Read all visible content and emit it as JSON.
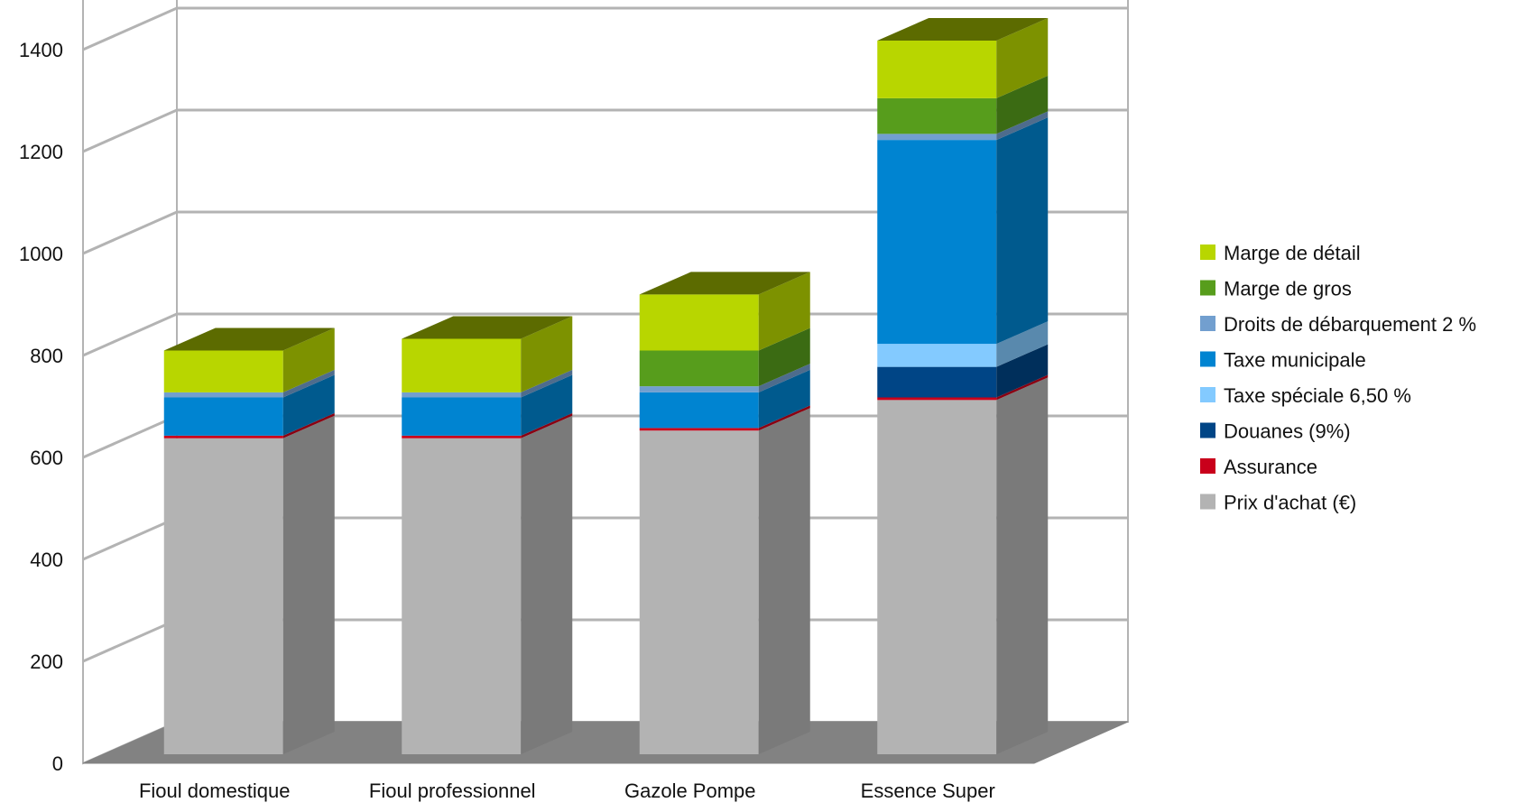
{
  "chart_data": {
    "type": "bar",
    "stacked": true,
    "three_d": true,
    "title": "",
    "xlabel": "",
    "ylabel": "",
    "ylim": [
      0,
      1400
    ],
    "yticks": [
      0,
      200,
      400,
      600,
      800,
      1000,
      1200,
      1400
    ],
    "grid": true,
    "legend_position": "right",
    "categories": [
      "Fioul domestique",
      "Fioul professionnel",
      "Gazole Pompe",
      "Essence Super"
    ],
    "series": [
      {
        "name": "Prix d'achat (€)",
        "color": "#b3b3b3",
        "values": [
          620,
          620,
          635,
          695
        ]
      },
      {
        "name": "Assurance",
        "color": "#c9001b",
        "values": [
          5,
          5,
          5,
          5
        ]
      },
      {
        "name": "Douanes (9%)",
        "color": "#004586",
        "values": [
          0,
          0,
          0,
          60
        ]
      },
      {
        "name": "Taxe spéciale 6,50 %",
        "color": "#83caff",
        "values": [
          0,
          0,
          0,
          45
        ]
      },
      {
        "name": "Taxe municipale",
        "color": "#0084d1",
        "values": [
          75,
          75,
          70,
          400
        ]
      },
      {
        "name": "Droits de débarquement 2 %",
        "color": "#729fcf",
        "values": [
          10,
          10,
          12,
          12
        ]
      },
      {
        "name": "Marge de gros",
        "color": "#579d1c",
        "values": [
          0,
          0,
          70,
          70
        ]
      },
      {
        "name": "Marge de détail",
        "color": "#b8d600",
        "values": [
          82,
          105,
          110,
          113
        ]
      }
    ]
  }
}
